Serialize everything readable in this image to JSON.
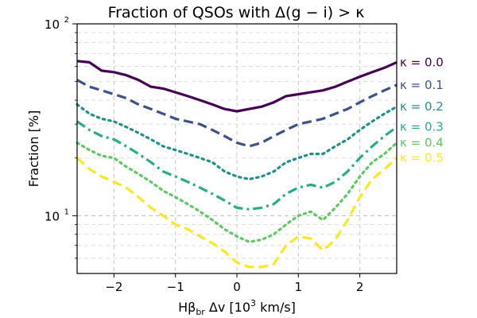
{
  "chart_data": {
    "type": "line",
    "title": "Fraction of QSOs with Δ(g − i) > κ",
    "xlabel": "Hβbr Δv [10³ km/s]",
    "xlabel_parts": {
      "main": "Hβ",
      "sub": "br",
      "rest": " Δv [10",
      "sup": "3",
      "end": " km/s]"
    },
    "ylabel": "Fraction [%]",
    "y_scale": "log",
    "xlim": [
      -2.6,
      2.6
    ],
    "ylim": [
      5,
      100
    ],
    "grid": true,
    "x_ticks": [
      {
        "value": -2,
        "label": "−2"
      },
      {
        "value": -1,
        "label": "−1"
      },
      {
        "value": 0,
        "label": "0"
      },
      {
        "value": 1,
        "label": "1"
      },
      {
        "value": 2,
        "label": "2"
      }
    ],
    "y_ticks": [
      {
        "value": 10,
        "label": "10",
        "sup": "1"
      },
      {
        "value": 100,
        "label": "10",
        "sup": "2"
      }
    ],
    "x": [
      -2.6,
      -2.4,
      -2.2,
      -2.0,
      -1.8,
      -1.6,
      -1.4,
      -1.2,
      -1.0,
      -0.8,
      -0.6,
      -0.4,
      -0.2,
      0.0,
      0.2,
      0.4,
      0.6,
      0.8,
      1.0,
      1.2,
      1.4,
      1.6,
      1.8,
      2.0,
      2.2,
      2.4,
      2.6
    ],
    "series": [
      {
        "name": "κ = 0.0",
        "color": "#440154",
        "dash": "solid",
        "values": [
          64,
          63,
          57,
          56,
          54,
          51,
          47,
          46,
          44,
          42,
          40,
          38,
          36,
          35,
          36,
          37,
          39,
          42,
          43,
          44,
          45,
          47,
          50,
          53,
          56,
          59,
          63
        ]
      },
      {
        "name": "κ = 0.1",
        "color": "#3b528b",
        "dash": "dashed",
        "values": [
          51,
          47,
          45,
          43,
          41,
          38,
          36,
          34,
          32,
          31,
          30,
          28,
          26,
          24,
          23,
          24,
          26,
          28,
          30,
          31,
          32,
          34,
          36,
          39,
          42,
          45,
          48
        ]
      },
      {
        "name": "κ = 0.2",
        "color": "#21908d",
        "dash": "dotted",
        "values": [
          38,
          34,
          32,
          31,
          29,
          27,
          25,
          23,
          22,
          21,
          20,
          19,
          17,
          16,
          15.5,
          16,
          17,
          19,
          20,
          21,
          21,
          23,
          25,
          28,
          31,
          34,
          37
        ]
      },
      {
        "name": "κ = 0.3",
        "color": "#27ad81",
        "dash": "dashdot",
        "values": [
          31,
          28,
          26,
          25,
          23,
          21,
          19,
          17,
          16,
          15,
          14,
          13,
          12,
          11,
          10.8,
          11,
          11.5,
          13,
          14,
          14.5,
          14,
          15,
          17,
          20,
          23,
          26,
          29
        ]
      },
      {
        "name": "κ = 0.4",
        "color": "#5ec962",
        "dash": "dotted",
        "values": [
          24,
          22,
          20.5,
          20,
          18,
          16.5,
          15,
          13.5,
          12.5,
          11.5,
          10.5,
          9.5,
          8.5,
          7.8,
          7.3,
          7.5,
          8,
          9,
          10,
          10.5,
          9.5,
          11,
          13,
          16,
          19,
          21,
          24
        ]
      },
      {
        "name": "κ = 0.5",
        "color": "#fde725",
        "dash": "dashed",
        "values": [
          20,
          17.5,
          16,
          15,
          14,
          12.5,
          11,
          10,
          9,
          8.5,
          7.8,
          7.2,
          6.5,
          5.7,
          5.4,
          5.4,
          5.6,
          7,
          7.8,
          7.6,
          6.6,
          7.5,
          9.5,
          12.5,
          15.5,
          17.5,
          20
        ]
      }
    ]
  }
}
